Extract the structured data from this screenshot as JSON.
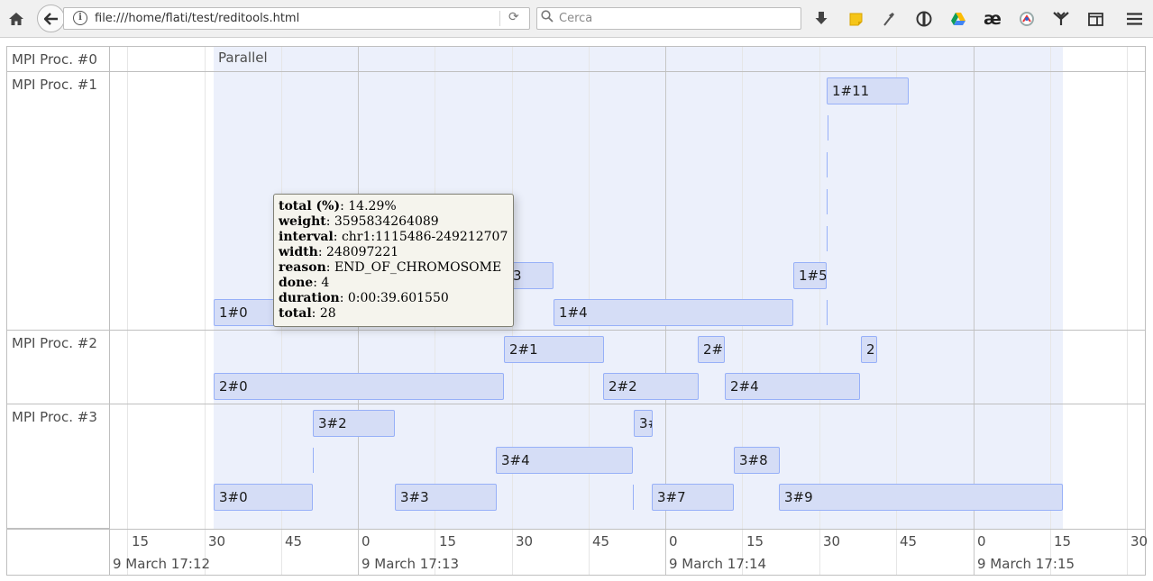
{
  "browser": {
    "url": "file:///home/flati/test/reditools.html",
    "search_placeholder": "Cerca",
    "icons": [
      "home-icon",
      "back-icon",
      "info-icon",
      "reload-icon",
      "search-icon",
      "download-icon",
      "note-icon",
      "dropper-icon",
      "extension-icon",
      "drive-icon",
      "ae-icon",
      "circle-icon",
      "tree-icon",
      "sidebar-icon",
      "menu-icon"
    ],
    "ae_glyph": "æ"
  },
  "groups": [
    {
      "id": "g0",
      "label": "MPI Proc. #0"
    },
    {
      "id": "g1",
      "label": "MPI Proc. #1"
    },
    {
      "id": "g2",
      "label": "MPI Proc. #2"
    },
    {
      "id": "g3",
      "label": "MPI Proc. #3"
    }
  ],
  "background_item": {
    "label": "Parallel",
    "color": "#d5ddf6"
  },
  "items": [
    {
      "label": "1#11"
    },
    {
      "label": "1#5"
    },
    {
      "label": "3"
    },
    {
      "label": "1#0"
    },
    {
      "label": "1#4"
    },
    {
      "label": "2#1"
    },
    {
      "label": "2#"
    },
    {
      "label": "2"
    },
    {
      "label": "2#0"
    },
    {
      "label": "2#2"
    },
    {
      "label": "2#4"
    },
    {
      "label": "3#2"
    },
    {
      "label": "3#"
    },
    {
      "label": "3#4"
    },
    {
      "label": "3#8"
    },
    {
      "label": "3#0"
    },
    {
      "label": "3#3"
    },
    {
      "label": "3#7"
    },
    {
      "label": "3#9"
    }
  ],
  "axis": {
    "minor_labels": [
      "15",
      "30",
      "45",
      "0",
      "15",
      "30",
      "45",
      "0",
      "15",
      "30",
      "45",
      "0",
      "15",
      "30"
    ],
    "major_labels": [
      "9 March 17:12",
      "9 March 17:13",
      "9 March 17:14",
      "9 March 17:15"
    ]
  },
  "tooltip": {
    "rows": [
      {
        "key": "total (%)",
        "value": "14.29%"
      },
      {
        "key": "weight",
        "value": "3595834264089"
      },
      {
        "key": "interval",
        "value": "chr1:1115486-249212707"
      },
      {
        "key": "width",
        "value": "248097221"
      },
      {
        "key": "reason",
        "value": "END_OF_CHROMOSOME"
      },
      {
        "key": "done",
        "value": "4"
      },
      {
        "key": "duration",
        "value": "0:00:39.601550"
      },
      {
        "key": "total",
        "value": "28"
      }
    ]
  },
  "colors": {
    "item_bg": "#d5ddf6",
    "item_border": "#97b0f8",
    "tooltip_bg": "#f5f4ed"
  }
}
